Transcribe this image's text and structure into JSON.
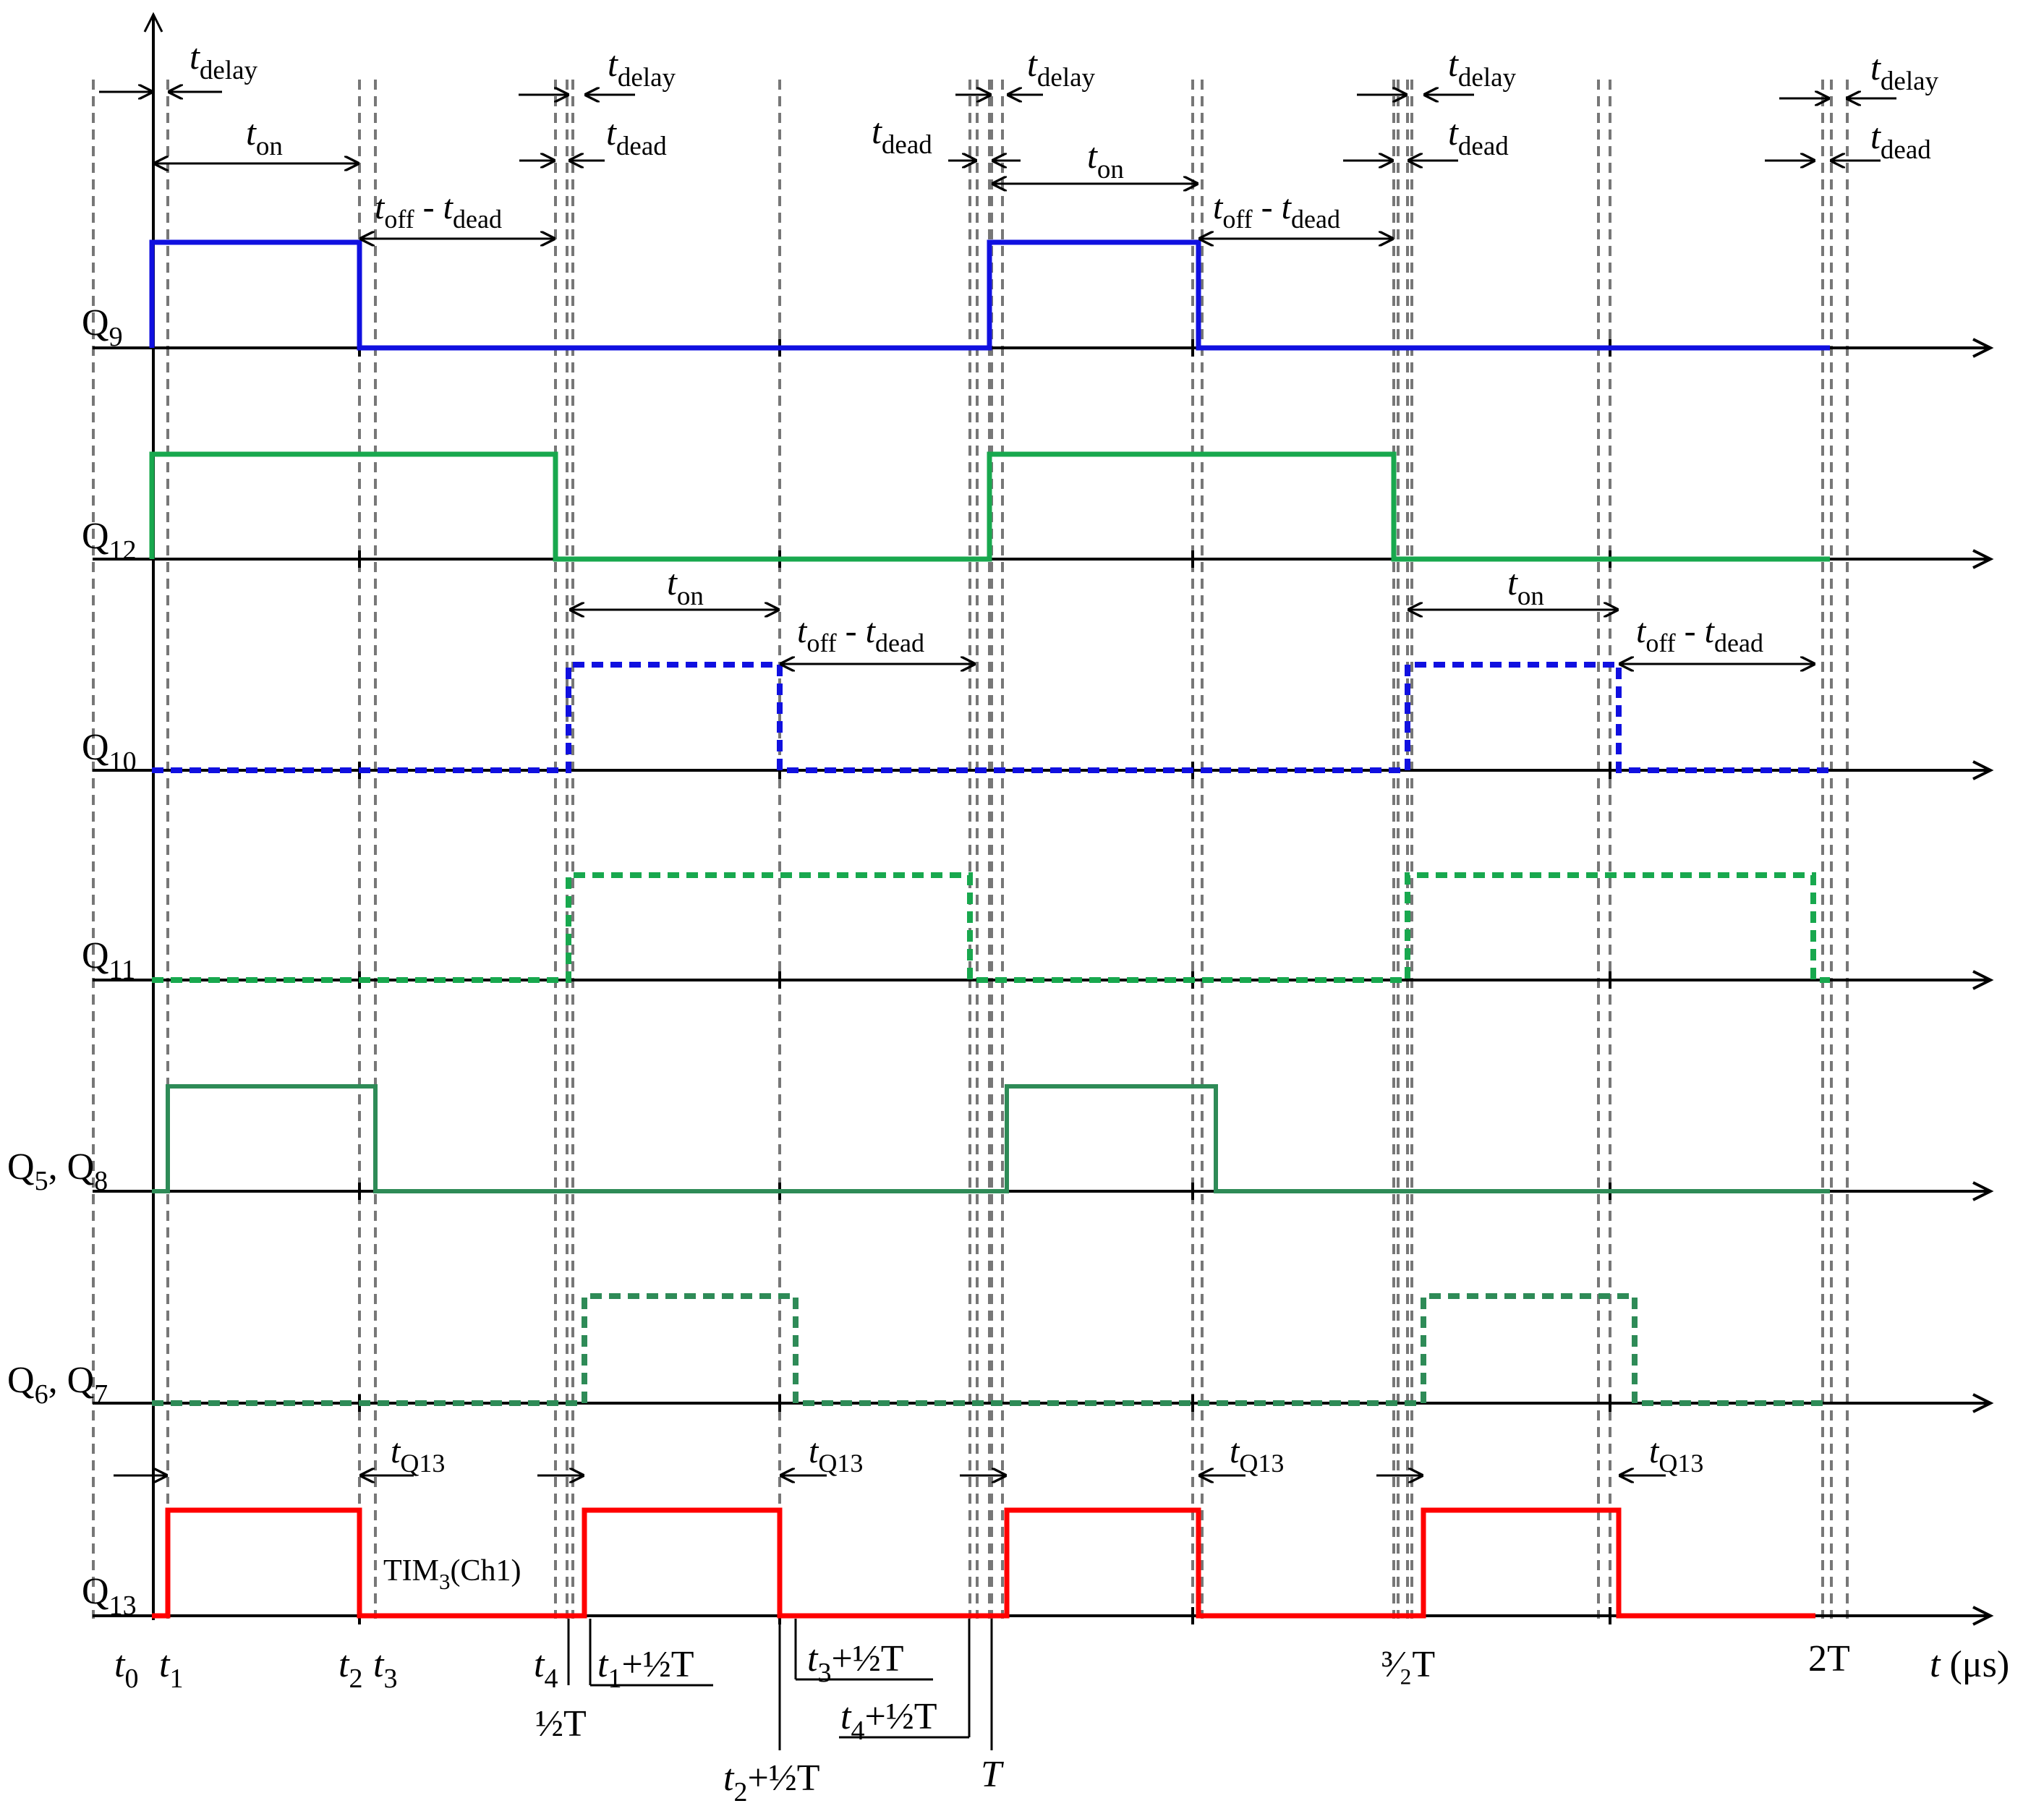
{
  "colors": {
    "axis": "#000000",
    "guide": "#777777",
    "q9": "#1010e0",
    "q10": "#1010e0",
    "q12": "#18a84e",
    "q11": "#18a84e",
    "q58": "#2e8b57",
    "q67": "#2e8b57",
    "q13": "#ff0000"
  },
  "signals": [
    {
      "id": "q9",
      "label": "Q",
      "sub": "9"
    },
    {
      "id": "q12",
      "label": "Q",
      "sub": "12"
    },
    {
      "id": "q10",
      "label": "Q",
      "sub": "10"
    },
    {
      "id": "q11",
      "label": "Q",
      "sub": "11"
    },
    {
      "id": "q58",
      "label": "Q",
      "sub": "5",
      "label2": ", Q",
      "sub2": "8"
    },
    {
      "id": "q67",
      "label": "Q",
      "sub": "6",
      "label2": ", Q",
      "sub2": "7"
    },
    {
      "id": "q13",
      "label": "Q",
      "sub": "13"
    }
  ],
  "annotations": {
    "t_letter": "t",
    "delay": "delay",
    "dead": "dead",
    "on": "on",
    "off": "off",
    "minus": " - ",
    "q13_sub": "Q13",
    "tim": "TIM",
    "tim_sub": "3",
    "tim_ch": "(Ch1)"
  },
  "time_axis": {
    "t0": {
      "t": "t",
      "sub": "0"
    },
    "t1": {
      "t": "t",
      "sub": "1"
    },
    "t2": {
      "t": "t",
      "sub": "2"
    },
    "t3": {
      "t": "t",
      "sub": "3"
    },
    "t4": {
      "t": "t",
      "sub": "4"
    },
    "half_T": "½T",
    "t1_half": {
      "t": "t",
      "sub": "1",
      "rest": "+½T"
    },
    "t2_half": {
      "t": "t",
      "sub": "2",
      "rest": "+½T"
    },
    "t3_half": {
      "t": "t",
      "sub": "3",
      "rest": "+½T"
    },
    "t4_half": {
      "t": "t",
      "sub": "4",
      "rest": "+½T"
    },
    "T": "T",
    "three_half_T": "³⁄₂T",
    "two_T": "2T",
    "unit_t": "t",
    "unit": " (μs)"
  }
}
